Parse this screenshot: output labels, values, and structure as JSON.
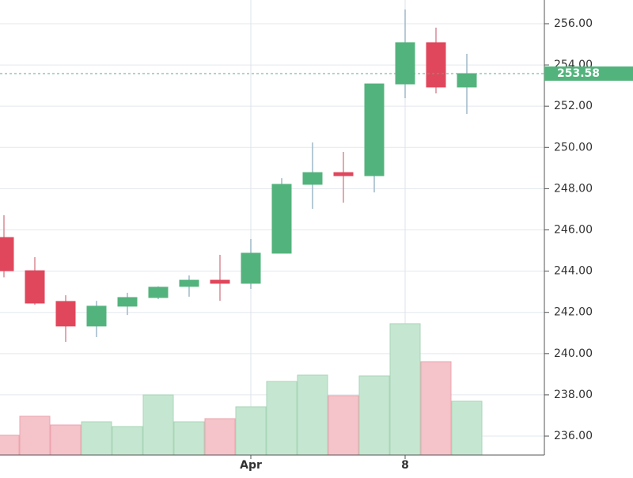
{
  "chart_data": {
    "type": "candlestick",
    "categories": [
      null,
      null,
      null,
      null,
      null,
      null,
      null,
      null,
      "Apr",
      null,
      null,
      null,
      null,
      "8",
      null,
      null
    ],
    "open": [
      245.63,
      244.02,
      242.53,
      241.34,
      242.3,
      242.72,
      243.26,
      243.56,
      243.41,
      244.87,
      248.21,
      248.78,
      248.63,
      253.08,
      255.08,
      252.93
    ],
    "high": [
      246.71,
      244.68,
      242.83,
      242.56,
      242.95,
      243.26,
      243.79,
      244.79,
      245.56,
      248.51,
      250.24,
      249.78,
      253.08,
      256.69,
      255.81,
      254.54
    ],
    "low": [
      243.7,
      242.37,
      240.57,
      240.8,
      241.87,
      242.64,
      242.76,
      242.56,
      243.14,
      244.87,
      247.02,
      247.32,
      247.82,
      252.39,
      252.62,
      251.62
    ],
    "close": [
      244.02,
      242.45,
      241.34,
      242.3,
      242.72,
      243.22,
      243.56,
      243.41,
      244.87,
      248.21,
      248.78,
      248.63,
      253.08,
      255.08,
      252.93,
      253.58
    ],
    "volume": [
      25,
      49,
      38,
      42,
      36,
      76,
      42,
      46,
      61,
      93,
      101,
      75,
      100,
      166,
      118,
      68
    ],
    "volume_lim": [
      0,
      575
    ],
    "up_color": "#53b37c",
    "down_color": "#e0475c",
    "up_volume_color": "#c5e7d1",
    "down_volume_color": "#f5c3ca",
    "last_price": {
      "value": 253.58,
      "label": "253.58"
    },
    "ylim": [
      235.08,
      257.15
    ],
    "yticks": [
      {
        "value": 236,
        "label": "236.00"
      },
      {
        "value": 238,
        "label": "238.00"
      },
      {
        "value": 240,
        "label": "240.00"
      },
      {
        "value": 242,
        "label": "242.00"
      },
      {
        "value": 244,
        "label": "244.00"
      },
      {
        "value": 246,
        "label": "246.00"
      },
      {
        "value": 248,
        "label": "248.00"
      },
      {
        "value": 250,
        "label": "250.00"
      },
      {
        "value": 252,
        "label": "252.00"
      },
      {
        "value": 254,
        "label": "254.00"
      },
      {
        "value": 256,
        "label": "256.00"
      }
    ],
    "grid": true
  }
}
